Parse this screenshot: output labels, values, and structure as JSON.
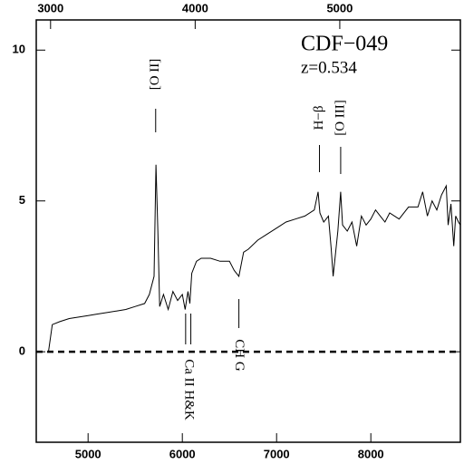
{
  "chart_data": {
    "type": "line",
    "title": "CDF−049",
    "subtitle": "z=0.534",
    "x": [
      4580,
      4620,
      4700,
      4800,
      4900,
      5000,
      5100,
      5200,
      5300,
      5400,
      5500,
      5600,
      5650,
      5700,
      5720,
      5740,
      5760,
      5800,
      5850,
      5900,
      5950,
      6000,
      6030,
      6060,
      6080,
      6100,
      6150,
      6200,
      6300,
      6400,
      6500,
      6550,
      6600,
      6650,
      6700,
      6800,
      6900,
      7000,
      7100,
      7200,
      7300,
      7400,
      7440,
      7460,
      7500,
      7550,
      7580,
      7600,
      7650,
      7680,
      7700,
      7750,
      7800,
      7850,
      7900,
      7950,
      8000,
      8050,
      8100,
      8150,
      8200,
      8300,
      8400,
      8500,
      8550,
      8600,
      8650,
      8700,
      8750,
      8800,
      8820,
      8850,
      8880,
      8900,
      8930,
      8950
    ],
    "values": [
      0,
      0.9,
      1.0,
      1.1,
      1.15,
      1.2,
      1.25,
      1.3,
      1.35,
      1.4,
      1.5,
      1.6,
      1.9,
      2.5,
      6.2,
      4.0,
      1.5,
      1.9,
      1.4,
      2.0,
      1.7,
      1.9,
      1.4,
      2.0,
      1.6,
      2.6,
      3.0,
      3.1,
      3.1,
      3.0,
      3.0,
      2.7,
      2.5,
      3.3,
      3.4,
      3.7,
      3.9,
      4.1,
      4.3,
      4.4,
      4.5,
      4.7,
      5.3,
      4.6,
      4.3,
      4.5,
      3.4,
      2.5,
      4.0,
      5.3,
      4.2,
      4.0,
      4.3,
      3.5,
      4.5,
      4.2,
      4.4,
      4.7,
      4.5,
      4.3,
      4.6,
      4.4,
      4.8,
      4.8,
      5.3,
      4.5,
      5.0,
      4.7,
      5.2,
      5.5,
      4.2,
      4.9,
      3.5,
      4.5,
      4.3,
      4.2
    ],
    "color": "#000000",
    "xlim": [
      4450,
      8950
    ],
    "xticks": [
      5000,
      6000,
      7000,
      8000
    ],
    "x2lim": [
      2901,
      5834
    ],
    "x2ticks": [
      3000,
      4000,
      5000
    ],
    "ylim": [
      -3,
      11
    ],
    "yticks": [
      0,
      5,
      10
    ],
    "hline": 0,
    "annotations": [
      {
        "text": "[O II]",
        "x": 5717
      },
      {
        "text": "H−β",
        "x": 7455
      },
      {
        "text": "[O III]",
        "x": 7680
      },
      {
        "text": "Ca II H&K",
        "x": [
          6035,
          6090
        ]
      },
      {
        "text": "CH G",
        "x": 6600
      }
    ]
  }
}
